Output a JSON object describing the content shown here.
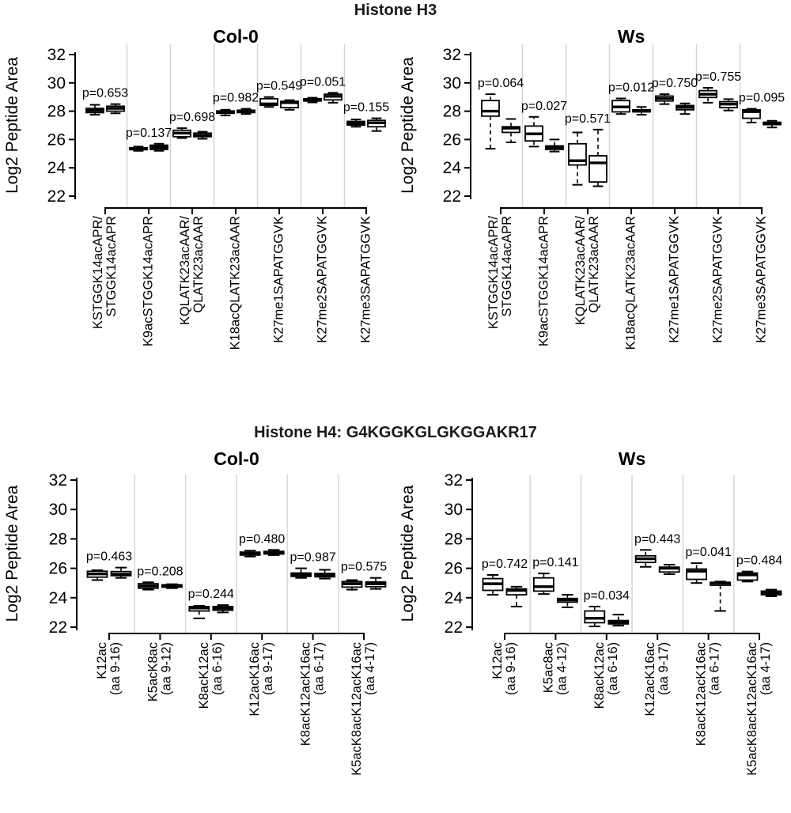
{
  "chart_data": [
    {
      "type": "boxplot",
      "figure_title": "Histone H3",
      "panel_title": "Col-0",
      "ylabel": "Log2 Peptide Area",
      "ylim": [
        22,
        32
      ],
      "yticks": [
        22,
        24,
        26,
        28,
        30,
        32
      ],
      "grid": "vertical category separators",
      "boxes_per_category": 2,
      "categories": [
        {
          "label": [
            "KSTGGK14acAPR/",
            "STGGK14acAPR"
          ],
          "p": "p=0.653",
          "box1": [
            27.75,
            27.9,
            28.05,
            28.2,
            28.45
          ],
          "box2": [
            27.85,
            28.0,
            28.2,
            28.35,
            28.5
          ]
        },
        {
          "label": [
            "K9acSTGGK14acAPR"
          ],
          "p": "p=0.137",
          "box1": [
            25.2,
            25.28,
            25.35,
            25.42,
            25.5
          ],
          "box2": [
            25.2,
            25.3,
            25.45,
            25.6,
            25.7
          ]
        },
        {
          "label": [
            "KQLATK23acAAR/",
            "QLATK23acAAR"
          ],
          "p": "p=0.698",
          "box1": [
            26.1,
            26.2,
            26.45,
            26.65,
            26.8
          ],
          "box2": [
            26.05,
            26.2,
            26.3,
            26.45,
            26.55
          ]
        },
        {
          "label": [
            "K18acQLATK23acAAR"
          ],
          "p": "p=0.982",
          "box1": [
            27.7,
            27.85,
            27.95,
            28.02,
            28.1
          ],
          "box2": [
            27.8,
            27.9,
            28.0,
            28.07,
            28.17
          ]
        },
        {
          "label": [
            "K27me1SAPATGGVK"
          ],
          "p": "p=0.549",
          "box1": [
            28.3,
            28.42,
            28.52,
            28.88,
            29.0
          ],
          "box2": [
            28.1,
            28.25,
            28.6,
            28.7,
            28.78
          ]
        },
        {
          "label": [
            "K27me2SAPATGGVK"
          ],
          "p": "p=0.051",
          "box1": [
            28.62,
            28.72,
            28.8,
            28.88,
            28.95
          ],
          "box2": [
            28.6,
            28.8,
            29.05,
            29.2,
            29.3
          ]
        },
        {
          "label": [
            "K27me3SAPATGGVK"
          ],
          "p": "p=0.155",
          "box1": [
            26.9,
            27.02,
            27.15,
            27.28,
            27.42
          ],
          "box2": [
            26.6,
            26.9,
            27.18,
            27.35,
            27.5
          ]
        }
      ]
    },
    {
      "type": "boxplot",
      "figure_title": "Histone H3",
      "panel_title": "Ws",
      "ylabel": "Log2 Peptide Area",
      "ylim": [
        22,
        32
      ],
      "yticks": [
        22,
        24,
        26,
        28,
        30,
        32
      ],
      "grid": "vertical category separators",
      "boxes_per_category": 2,
      "categories": [
        {
          "label": [
            "KSTGGK14acAPR/",
            "STGGK14acAPR"
          ],
          "p": "p=0.064",
          "box1": [
            25.35,
            27.65,
            28.0,
            28.75,
            29.2
          ],
          "box2": [
            25.8,
            26.5,
            26.8,
            26.9,
            27.45
          ]
        },
        {
          "label": [
            "K9acSTGGK14acAPR"
          ],
          "p": "p=0.027",
          "box1": [
            25.5,
            25.9,
            26.4,
            26.95,
            27.6
          ],
          "box2": [
            25.15,
            25.3,
            25.42,
            25.55,
            26.0
          ]
        },
        {
          "label": [
            "KQLATK23acAAR/",
            "QLATK23acAAR"
          ],
          "p": "p=0.571",
          "box1": [
            22.8,
            24.2,
            24.5,
            25.7,
            26.5
          ],
          "box2": [
            22.7,
            23.0,
            24.35,
            24.85,
            26.7
          ]
        },
        {
          "label": [
            "K18acQLATK23acAAR"
          ],
          "p": "p=0.012",
          "box1": [
            27.8,
            27.95,
            28.3,
            28.75,
            28.9
          ],
          "box2": [
            27.75,
            27.95,
            28.02,
            28.1,
            28.3
          ]
        },
        {
          "label": [
            "K27me1SAPATGGVK"
          ],
          "p": "p=0.750",
          "box1": [
            28.5,
            28.72,
            28.9,
            29.07,
            29.2
          ],
          "box2": [
            27.8,
            28.1,
            28.27,
            28.4,
            28.55
          ]
        },
        {
          "label": [
            "K27me2SAPATGGVK"
          ],
          "p": "p=0.755",
          "box1": [
            28.6,
            28.97,
            29.2,
            29.45,
            29.65
          ],
          "box2": [
            28.05,
            28.25,
            28.5,
            28.67,
            28.85
          ]
        },
        {
          "label": [
            "K27me3SAPATGGVK"
          ],
          "p": "p=0.095",
          "box1": [
            27.2,
            27.5,
            27.97,
            28.1,
            28.17
          ],
          "box2": [
            26.85,
            27.05,
            27.15,
            27.22,
            27.32
          ]
        }
      ]
    },
    {
      "type": "boxplot",
      "figure_title": "Histone H4: G4KGGKGLGKGGAKR17",
      "panel_title": "Col-0",
      "ylabel": "Log2 Peptide Area",
      "ylim": [
        22,
        32
      ],
      "yticks": [
        22,
        24,
        26,
        28,
        30,
        32
      ],
      "grid": "vertical category separators",
      "boxes_per_category": 2,
      "categories": [
        {
          "label": [
            "K12ac",
            "(aa 9-16)"
          ],
          "p": "p=0.463",
          "box1": [
            25.2,
            25.4,
            25.62,
            25.8,
            25.87
          ],
          "box2": [
            25.35,
            25.5,
            25.6,
            25.78,
            26.05
          ]
        },
        {
          "label": [
            "K5acK8ac",
            "(aa 9-12)"
          ],
          "p": "p=0.208",
          "box1": [
            24.55,
            24.65,
            24.8,
            24.95,
            25.05
          ],
          "box2": [
            24.65,
            24.72,
            24.8,
            24.88,
            24.92
          ]
        },
        {
          "label": [
            "K8acK12ac",
            "(aa 6-16)"
          ],
          "p": "p=0.244",
          "box1": [
            22.6,
            23.1,
            23.3,
            23.4,
            23.45
          ],
          "box2": [
            23.0,
            23.15,
            23.28,
            23.4,
            23.5
          ]
        },
        {
          "label": [
            "K12acK16ac",
            "(aa 9-17)"
          ],
          "p": "p=0.480",
          "box1": [
            26.8,
            26.9,
            27.0,
            27.1,
            27.2
          ],
          "box2": [
            26.9,
            26.97,
            27.07,
            27.15,
            27.25
          ]
        },
        {
          "label": [
            "K8acK12acK16ac",
            "(aa 6-17)"
          ],
          "p": "p=0.987",
          "box1": [
            25.35,
            25.45,
            25.58,
            25.68,
            26.0
          ],
          "box2": [
            25.3,
            25.42,
            25.55,
            25.65,
            25.9
          ]
        },
        {
          "label": [
            "K5acK8acK12acK16ac",
            "(aa 4-17)"
          ],
          "p": "p=0.575",
          "box1": [
            24.55,
            24.72,
            24.95,
            25.1,
            25.2
          ],
          "box2": [
            24.6,
            24.75,
            24.95,
            25.07,
            25.35
          ]
        }
      ]
    },
    {
      "type": "boxplot",
      "figure_title": "Histone H4: G4KGGKGLGKGGAKR17",
      "panel_title": "Ws",
      "ylabel": "Log2 Peptide Area",
      "ylim": [
        22,
        32
      ],
      "yticks": [
        22,
        24,
        26,
        28,
        30,
        32
      ],
      "grid": "vertical category separators",
      "boxes_per_category": 2,
      "categories": [
        {
          "label": [
            "K12ac",
            "(aa 9-16)"
          ],
          "p": "p=0.742",
          "box1": [
            24.2,
            24.5,
            24.95,
            25.3,
            25.55
          ],
          "box2": [
            23.4,
            24.2,
            24.5,
            24.6,
            24.75
          ]
        },
        {
          "label": [
            "K5ac8ac",
            "(aa 4-12)"
          ],
          "p": "p=0.141",
          "box1": [
            24.25,
            24.45,
            24.75,
            25.35,
            25.65
          ],
          "box2": [
            23.35,
            23.7,
            23.85,
            23.95,
            24.2
          ]
        },
        {
          "label": [
            "K8acK12ac",
            "(aa 6-16)"
          ],
          "p": "p=0.034",
          "box1": [
            22.05,
            22.3,
            22.6,
            23.1,
            23.4
          ],
          "box2": [
            22.1,
            22.22,
            22.32,
            22.45,
            22.85
          ]
        },
        {
          "label": [
            "K12acK16ac",
            "(aa 9-17)"
          ],
          "p": "p=0.443",
          "box1": [
            26.1,
            26.4,
            26.65,
            26.85,
            27.25
          ],
          "box2": [
            25.6,
            25.75,
            26.0,
            26.08,
            26.25
          ]
        },
        {
          "label": [
            "K8acK12acK16ac",
            "(aa 6-17)"
          ],
          "p": "p=0.041",
          "box1": [
            25.0,
            25.25,
            25.8,
            25.95,
            26.35
          ],
          "box2": [
            23.1,
            24.85,
            25.0,
            25.05,
            25.1
          ]
        },
        {
          "label": [
            "K5acK8acK12acK16ac",
            "(aa 4-17)"
          ],
          "p": "p=0.484",
          "box1": [
            25.1,
            25.2,
            25.55,
            25.68,
            25.78
          ],
          "box2": [
            24.1,
            24.2,
            24.32,
            24.45,
            24.55
          ]
        }
      ]
    }
  ],
  "colors": {
    "ink": "#000000",
    "gridline": "#d6d6d6",
    "box_fill": "#ffffff",
    "background": "#ffffff"
  }
}
